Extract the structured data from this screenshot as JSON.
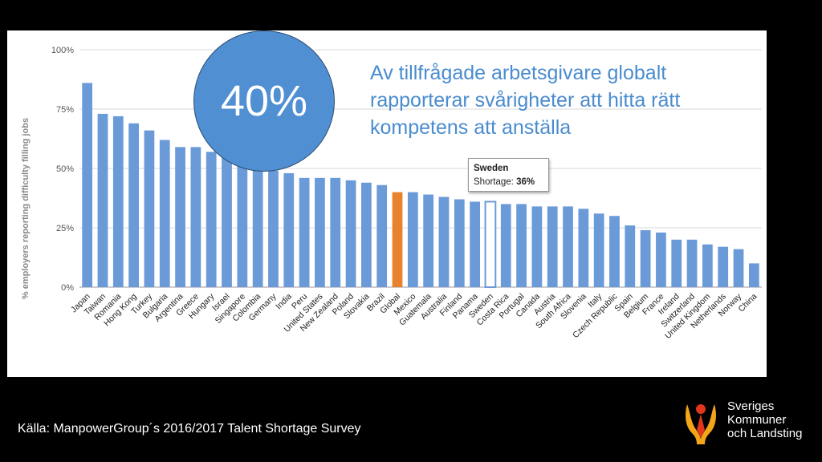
{
  "chart_data": {
    "type": "bar",
    "ylabel": "% employers reporting difficulty filling jobs",
    "ylim": [
      0,
      100
    ],
    "yticks": [
      "0%",
      "25%",
      "50%",
      "75%",
      "100%"
    ],
    "grid": true,
    "categories": [
      "Japan",
      "Taiwan",
      "Romania",
      "Hong Kong",
      "Turkey",
      "Bulgaria",
      "Argentina",
      "Greece",
      "Hungary",
      "Israel",
      "Singapore",
      "Colombia",
      "Germany",
      "India",
      "Peru",
      "United States",
      "New Zealand",
      "Poland",
      "Slovakia",
      "Brazil",
      "Global",
      "Mexico",
      "Guatemala",
      "Australia",
      "Finland",
      "Panama",
      "Sweden",
      "Costa Rica",
      "Portugal",
      "Canada",
      "Austria",
      "South Africa",
      "Slovenia",
      "Italy",
      "Czech Republic",
      "Spain",
      "Belgium",
      "France",
      "Ireland",
      "Switzerland",
      "United Kingdom",
      "Netherlands",
      "Norway",
      "China"
    ],
    "values": [
      86,
      73,
      72,
      69,
      66,
      62,
      59,
      59,
      57,
      56,
      51,
      50,
      49,
      48,
      46,
      46,
      46,
      45,
      44,
      43,
      40,
      40,
      39,
      38,
      37,
      36,
      36,
      35,
      35,
      34,
      34,
      34,
      33,
      31,
      30,
      26,
      24,
      23,
      20,
      20,
      18,
      17,
      16,
      10
    ],
    "highlight": {
      "category": "Global",
      "color": "#e8822f"
    },
    "bar_color": "#6b9ad8",
    "tooltip": {
      "category": "Sweden",
      "title": "Sweden",
      "label": "Shortage:",
      "value": "36%"
    }
  },
  "callout": {
    "big_value": "40%",
    "text": "Av tillfrågade arbetsgivare globalt rapporterar svårigheter att hitta rätt kompetens att anställa"
  },
  "footer": {
    "source": "Källa: ManpowerGroup´s 2016/2017 Talent Shortage Survey",
    "logo_lines": [
      "Sveriges",
      "Kommuner",
      "och Landsting"
    ]
  }
}
